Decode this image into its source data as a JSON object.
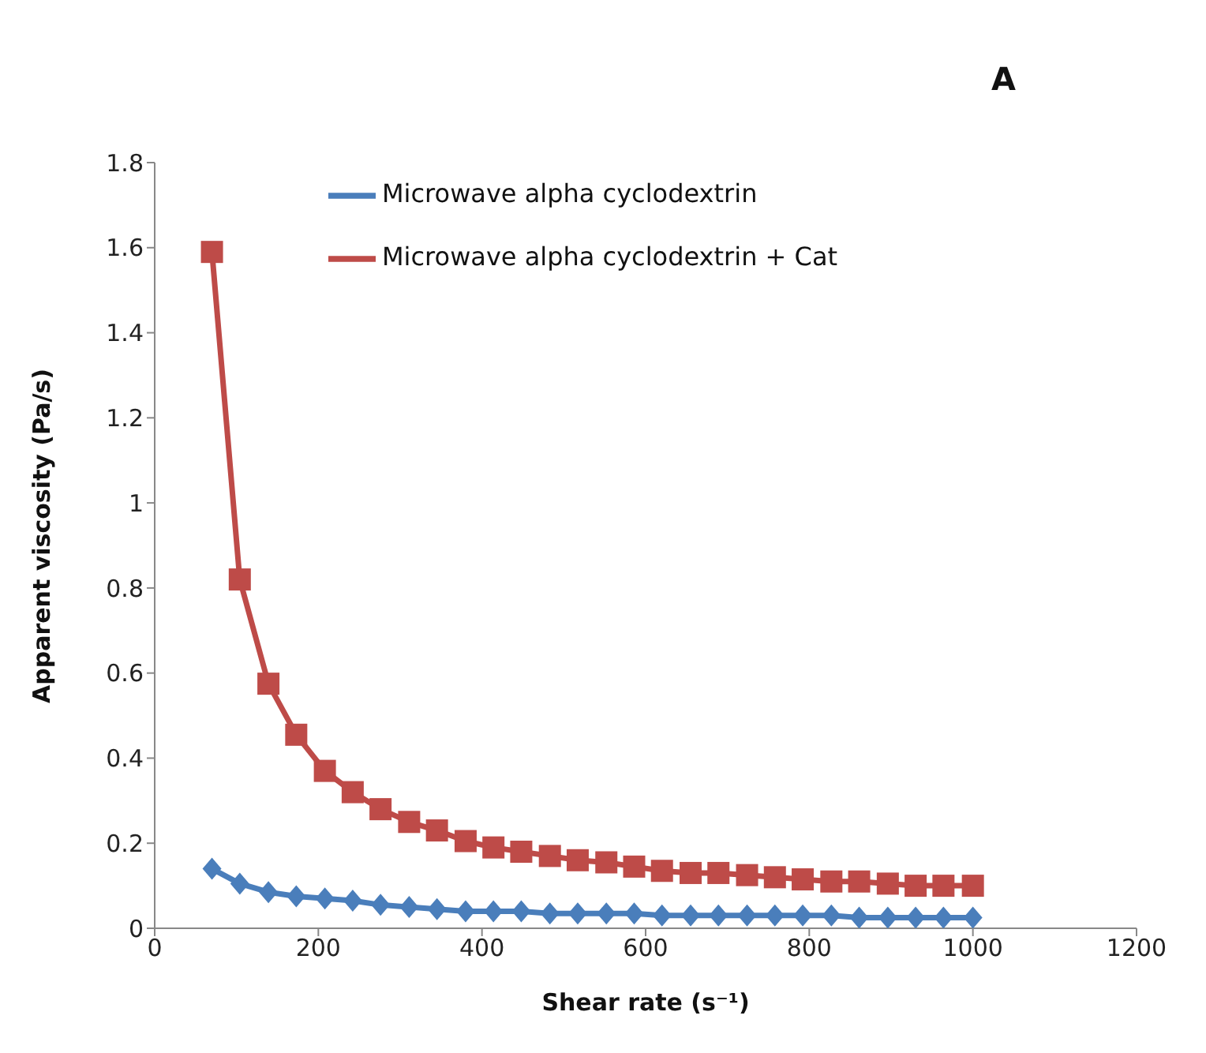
{
  "chart_data": {
    "type": "line",
    "xlabel": "Shear rate (s⁻¹)",
    "ylabel": "Apparent viscosity (Pa/s)",
    "annotations": [
      "A"
    ],
    "x": [
      70,
      104,
      139,
      173,
      208,
      242,
      276,
      311,
      345,
      380,
      414,
      448,
      483,
      517,
      552,
      586,
      620,
      655,
      689,
      724,
      758,
      792,
      827,
      861,
      896,
      930,
      964,
      1000
    ],
    "series": [
      {
        "name": "Microwave alpha cyclodextrin",
        "color": "#4a7ebb",
        "marker": "diamond",
        "values": [
          0.14,
          0.105,
          0.085,
          0.075,
          0.07,
          0.065,
          0.055,
          0.05,
          0.045,
          0.04,
          0.04,
          0.04,
          0.035,
          0.035,
          0.035,
          0.035,
          0.03,
          0.03,
          0.03,
          0.03,
          0.03,
          0.03,
          0.03,
          0.025,
          0.025,
          0.025,
          0.025,
          0.025
        ]
      },
      {
        "name": "Microwave alpha cyclodextrin + Cat",
        "color": "#be4b48",
        "marker": "square",
        "values": [
          1.59,
          0.82,
          0.575,
          0.455,
          0.37,
          0.32,
          0.28,
          0.25,
          0.23,
          0.205,
          0.19,
          0.18,
          0.17,
          0.16,
          0.155,
          0.145,
          0.135,
          0.13,
          0.13,
          0.125,
          0.12,
          0.115,
          0.11,
          0.11,
          0.105,
          0.1,
          0.1,
          0.1
        ]
      }
    ],
    "xlim": [
      0,
      1200
    ],
    "xticks": [
      0,
      200,
      400,
      600,
      800,
      1000,
      1200
    ],
    "ylim": [
      0,
      1.8
    ],
    "yticks": [
      0,
      0.2,
      0.4,
      0.6,
      0.8,
      1,
      1.2,
      1.4,
      1.6,
      1.8
    ],
    "grid": false,
    "legend": "top",
    "line_style": "solid"
  }
}
